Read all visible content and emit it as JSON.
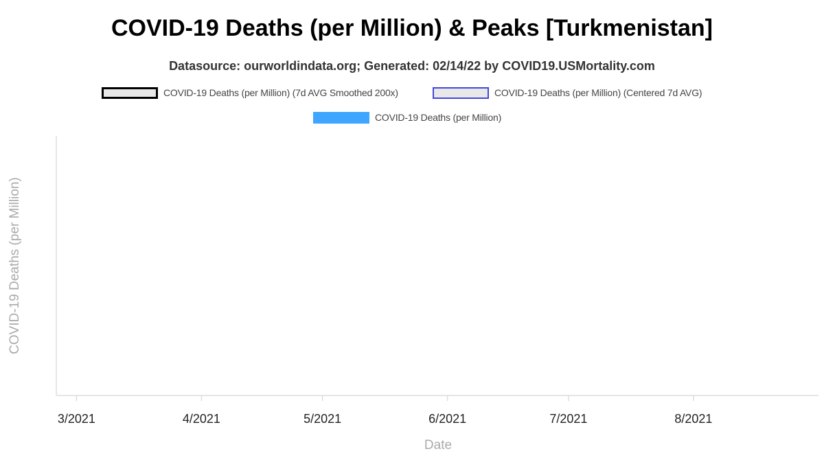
{
  "chart_data": {
    "type": "line",
    "title": "COVID-19 Deaths (per Million) & Peaks [Turkmenistan]",
    "subtitle": "Datasource: ourworldindata.org; Generated: 02/14/22 by COVID19.USMortality.com",
    "xlabel": "Date",
    "ylabel": "COVID-19 Deaths (per Million)",
    "x_ticks": [
      "3/2021",
      "4/2021",
      "5/2021",
      "6/2021",
      "7/2021",
      "8/2021"
    ],
    "x_range": [
      "2021-02-24",
      "2021-09-01"
    ],
    "legend_position": "top-center",
    "grid": false,
    "series": [
      {
        "name": "COVID-19 Deaths (per Million) (7d AVG Smoothed 200x)",
        "type": "line",
        "color": "#000000",
        "fill": "#e8e8e8",
        "values": []
      },
      {
        "name": "COVID-19 Deaths (per Million) (Centered 7d AVG)",
        "type": "line",
        "color": "#4444dd",
        "fill": "#e8e8e8",
        "values": []
      },
      {
        "name": "COVID-19 Deaths (per Million)",
        "type": "bar",
        "color": "#3ea6ff",
        "values": []
      }
    ]
  }
}
